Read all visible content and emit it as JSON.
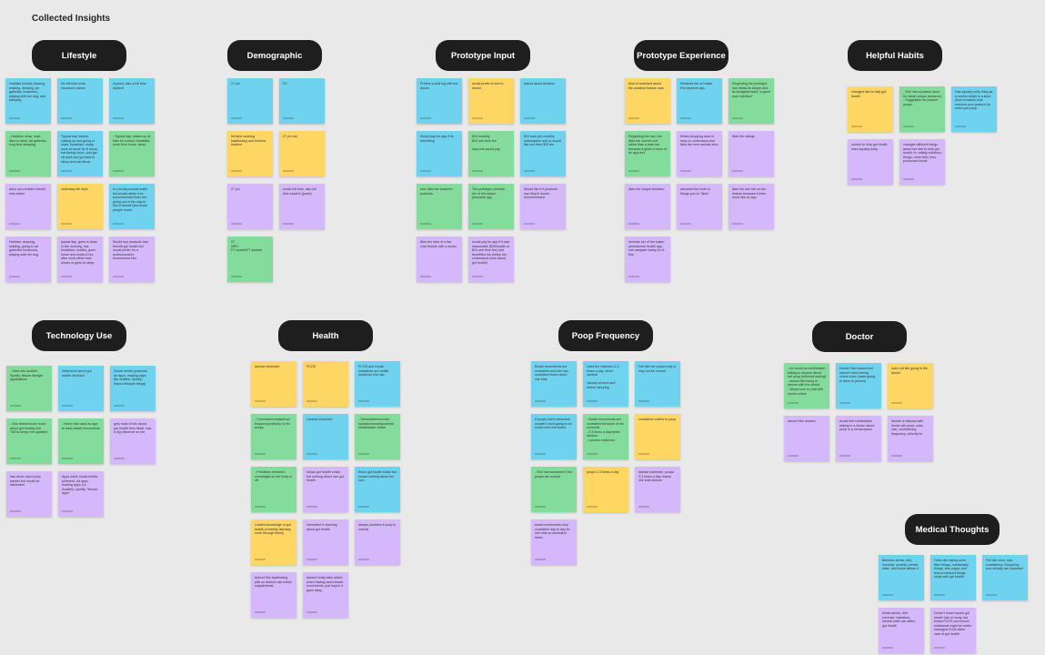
{
  "board_title": "Collected Insights",
  "colors": {
    "blue": "#6fd3ef",
    "green": "#84dc9c",
    "yellow": "#fdd663",
    "purple": "#d5b8fb",
    "header": "#1e1e1e"
  },
  "clusters": [
    {
      "id": "lifestyle",
      "title": "Lifestyle",
      "cols": 3,
      "notes": [
        {
          "c": "blue",
          "t": "Hobbies include drawing, reading, drinking, art galleries, museums, playing with her dog, and sleeping"
        },
        {
          "c": "blue",
          "t": "No full time work, insurance claims"
        },
        {
          "c": "blue",
          "t": "A junior, also a full time student"
        },
        {
          "c": "green",
          "t": "- Hobbies: draw, read, likes to drink, art galleries, long time sleeping"
        },
        {
          "c": "blue",
          "t": "Typical day include waking up and going to class, breakfast, study, work at home for 8 hours, eat during lunch, and get off work and go back to sleep and eat dinner"
        },
        {
          "c": "green",
          "t": "- Typical day: wakes up at 9am for school, breakfast, work from home, sleep"
        },
        {
          "c": "purple",
          "t": "does not consider herself very active"
        },
        {
          "c": "yellow",
          "t": "sedentary life style"
        },
        {
          "c": "blue",
          "t": "Is a serial product tester but would rather it be recommended than her going out of her way to find it herself (she trusts people more)"
        },
        {
          "c": "purple",
          "t": "Hobbies: drawing, reading, going to art galleries/ museums, playing with her dog"
        },
        {
          "c": "purple",
          "t": "typical day: goes to class in the morning, has breakfast, studies, goes home and works 8 hrs, after work either eats dinner or goes to sleep"
        },
        {
          "c": "purple",
          "t": "Would buy products that benefit gut health but would prefer for a professional to recommend first"
        }
      ]
    },
    {
      "id": "demographic",
      "title": "Demographic",
      "cols": 2,
      "notes": [
        {
          "c": "blue",
          "t": "27 y/o"
        },
        {
          "c": "blue",
          "t": "RJ"
        },
        {
          "c": "yellow",
          "t": "full time working (stationary) and full time student"
        },
        {
          "c": "yellow",
          "t": "27 y/o old"
        },
        {
          "c": "purple",
          "t": "27 y/o"
        },
        {
          "c": "purple",
          "t": "works full time, also full time student (junior)"
        },
        {
          "c": "green",
          "t": "27\nMPH\nFT worker/FT student"
        }
      ]
    },
    {
      "id": "prototype-input",
      "title": "Prototype Input",
      "cols": 3,
      "notes": [
        {
          "c": "blue",
          "t": "Prefers a chat log with the doctor"
        },
        {
          "c": "yellow",
          "t": "would prefer to text to doctor"
        },
        {
          "c": "blue",
          "t": "Asked about duration"
        },
        {
          "c": "blue",
          "t": "Would pay for app if its benefiting"
        },
        {
          "c": "green",
          "t": "$10 monthly\n$10 one time fee\n\nmay she would pay"
        },
        {
          "c": "blue",
          "t": "$10 max per monthly subscription and or would like one time $10 fee"
        },
        {
          "c": "green",
          "t": "she Likes the featured products"
        },
        {
          "c": "green",
          "t": "The prototype reminds her of her kaiser permante app"
        },
        {
          "c": "purple",
          "t": "Would like it if products say they're doctor recommended"
        },
        {
          "c": "purple",
          "t": "likes the idea of a live chat feature with a doctor"
        },
        {
          "c": "purple",
          "t": "would pay for app if it was reasonable ($10/month or $10 one time fee) and benefited her (helps her understand more about gut health)"
        }
      ]
    },
    {
      "id": "prototype-experience",
      "title": "Prototype Experience",
      "cols": 3,
      "notes": [
        {
          "c": "yellow",
          "t": "kind of confused about the duration feature was"
        },
        {
          "c": "blue",
          "t": "Reminds her of Kaiser Permanente app"
        },
        {
          "c": "green",
          "t": "Regarding the prototype she thinks its simple and its straightforward \"a good user interface\""
        },
        {
          "c": "green",
          "t": "Regarding the nav, she likes the current one rather than a side bar because it gives it more of an app feel"
        },
        {
          "c": "purple",
          "t": "thinks shopping area is easy to understand and likes the new arrivals area"
        },
        {
          "c": "purple",
          "t": "likes the ratings"
        },
        {
          "c": "purple",
          "t": "likes the simple interface"
        },
        {
          "c": "purple",
          "t": "assumes the heart is things you've \"liked\""
        },
        {
          "c": "purple",
          "t": "likes the nav bar on the bottom because it feels more like an app"
        },
        {
          "c": "purple",
          "t": "reminds her of the kaiser permanente health app, can navigate easily bc of this"
        }
      ]
    },
    {
      "id": "helpful-habits",
      "title": "Helpful Habits",
      "cols": 3,
      "notes": [
        {
          "c": "yellow",
          "t": "changed diet to help gut health"
        },
        {
          "c": "green",
          "t": "- She has a posture stool for easier poops (amazon)\n   - Suggestion for posture poops"
        },
        {
          "c": "blue",
          "t": "Has squatty potty thing as a routine which is a stool (from Amazon) that corrects your posture for when you poop"
        },
        {
          "c": "purple",
          "t": "routine to help gut health uses squatty potty"
        },
        {
          "c": "purple",
          "t": "changes different things about her diet to help gut health i.e. eating nutritious things, more fiber, less processed foods"
        }
      ]
    },
    {
      "id": "technology-use",
      "title": "Technology Use",
      "cols": 3,
      "notes": [
        {
          "c": "green",
          "t": "- Stars into audible, Spotify, leisure lifestyle applications"
        },
        {
          "c": "blue",
          "t": "Influenced about gut health via tiktok"
        },
        {
          "c": "blue",
          "t": "Social media (pinterest, art apps, reading apps like audible, Spotify, leisure lifestyle things)"
        },
        {
          "c": "green",
          "t": "- She doesnt know much about gut healthy but TikTok keeps her updated"
        },
        {
          "c": "green",
          "t": "- Never has used an app to track bowel movements"
        },
        {
          "c": "purple",
          "t": "gets most of info about gut health from tiktok, has a big influence on her"
        },
        {
          "c": "purple",
          "t": "has never used poop tracker but would be interested"
        },
        {
          "c": "purple",
          "t": "Apps used: social media, pinterest, art apps, reading apps (i.e. Audible), spotify, \"leisure apps\""
        }
      ]
    },
    {
      "id": "health",
      "title": "Health",
      "cols": 3,
      "notes": [
        {
          "c": "yellow",
          "t": "lactose intolerant"
        },
        {
          "c": "yellow",
          "t": "PCOS"
        },
        {
          "c": "blue",
          "t": "PCOS and insulin resistance are health problems she has"
        },
        {
          "c": "green",
          "t": "- Color/size/consistency/ frequency/velocity of her poops"
        },
        {
          "c": "blue",
          "t": "Lactose intolerant"
        },
        {
          "c": "green",
          "t": "- Stress/diet/exercise/ hydration/anxiety/mental health/water intake"
        },
        {
          "c": "green",
          "t": "- Prioritizes research - overweight so her body is off"
        },
        {
          "c": "purple",
          "t": "knows gut health exists but nothing about own gut health"
        },
        {
          "c": "blue",
          "t": "Know gut health exists but knows nothing about her own"
        },
        {
          "c": "yellow",
          "t": "Limited knowledge of gut health (currently learning more through tiktok)"
        },
        {
          "c": "purple",
          "t": "Interested in learning about gut health"
        },
        {
          "c": "purple",
          "t": "always wonders if poop is normal"
        },
        {
          "c": "purple",
          "t": "doesn't like swallowing pills so doesn't use meds/ supplements"
        },
        {
          "c": "purple",
          "t": "doesn't really take action when having weird bowel movements, just hopes it goes away"
        }
      ]
    },
    {
      "id": "poop-frequency",
      "title": "Poop Frequency",
      "cols": 3,
      "notes": [
        {
          "c": "blue",
          "t": "Bowel movements are consistent and she has consistent times when she eats"
        },
        {
          "c": "blue",
          "t": "Uses the restroom 2-3 times a day, never random\n\nUsually at work and before sleeping"
        },
        {
          "c": "blue",
          "t": "Felt like her poops may or may not be normal"
        },
        {
          "c": "blue",
          "t": "If poops seem abnormal, wouldn't mind going to an online informal doctor"
        },
        {
          "c": "green",
          "t": "- Bowel movements are consistent because of her schedule\n   - 2-3 times a day/never random\n   - Lactose intolerant"
        },
        {
          "c": "yellow",
          "t": "consistent routine to poop"
        },
        {
          "c": "green",
          "t": "- She has wondered if her poops are normal"
        },
        {
          "c": "yellow",
          "t": "poops 2-3 times a day"
        },
        {
          "c": "purple",
          "t": "lactose intolerant, poops 2-3 times a day unless she eats lactose"
        },
        {
          "c": "purple",
          "t": "bowel movements very consistent day to day bc she eats at consistent times"
        }
      ]
    },
    {
      "id": "doctor",
      "title": "Doctor",
      "cols": 3,
      "notes": [
        {
          "c": "green",
          "t": "- he would be comfortable talking to anyone about her poop (informal setting) - doesnt like being in person with the doctor\n   - Would love to chat with doctor online"
        },
        {
          "c": "blue",
          "t": "Doesn't like doctors but doesn't mind seeing virtual ones (hates going to them in person)"
        },
        {
          "c": "yellow",
          "t": "does not like going to the doctor"
        },
        {
          "c": "purple",
          "t": "doesn't like doctors"
        },
        {
          "c": "purple",
          "t": "would feel comfortable talking to a doctor about poop in a virtual space"
        },
        {
          "c": "purple",
          "t": "factors to discuss with doctor abt poop: color, size, consistency, frequency, velocity lol"
        }
      ]
    },
    {
      "id": "medical-thoughts",
      "title": "Medical Thoughts",
      "cols": 3,
      "notes": [
        {
          "c": "blue",
          "t": "Believes stress, diet, exercise, anxiety, mental state, and foods affects it"
        },
        {
          "c": "blue",
          "t": "Feels like eating more fiber things, nutritionally things, less sugar, and less processed things helps with gut health"
        },
        {
          "c": "blue",
          "t": "Felt like color, size, consistency, frequency, and velocity are important"
        },
        {
          "c": "purple",
          "t": "thinks stress, diet, exercise, hydration, mental state can affect gut health"
        },
        {
          "c": "purple",
          "t": "Doesn't know impact gut health has on body, but thinks PCOS and insulin resistance might be better managed if she takes care of gut health"
        }
      ]
    }
  ]
}
